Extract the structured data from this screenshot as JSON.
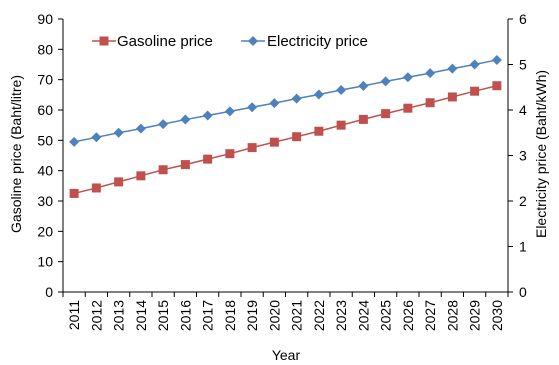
{
  "chart_data": {
    "type": "line",
    "xlabel": "Year",
    "ylabel_left": "Gasoline price (Baht/litre)",
    "ylabel_right": "Electricity price (Baht/kWh)",
    "x": [
      "2011",
      "2012",
      "2013",
      "2014",
      "2015",
      "2016",
      "2017",
      "2018",
      "2019",
      "2020",
      "2021",
      "2022",
      "2023",
      "2024",
      "2025",
      "2026",
      "2027",
      "2028",
      "2029",
      "2030"
    ],
    "ylim_left": [
      0,
      90
    ],
    "yticks_left": [
      0,
      10,
      20,
      30,
      40,
      50,
      60,
      70,
      80,
      90
    ],
    "ylim_right": [
      0,
      6
    ],
    "yticks_right": [
      0,
      1,
      2,
      3,
      4,
      5,
      6
    ],
    "grid": false,
    "legend_position": "top-left",
    "series": [
      {
        "name": "Gasoline price",
        "axis": "left",
        "marker": "square",
        "color": "#c0504d",
        "values": [
          32.5,
          34.3,
          36.3,
          38.3,
          40.3,
          42.0,
          43.8,
          45.6,
          47.6,
          49.4,
          51.2,
          53.0,
          55.0,
          56.9,
          58.8,
          60.6,
          62.4,
          64.3,
          66.2,
          68.0
        ]
      },
      {
        "name": "Electricity price",
        "axis": "right",
        "marker": "diamond",
        "color": "#4f81bd",
        "values": [
          3.3,
          3.4,
          3.5,
          3.59,
          3.69,
          3.79,
          3.88,
          3.97,
          4.06,
          4.15,
          4.25,
          4.34,
          4.44,
          4.53,
          4.63,
          4.72,
          4.81,
          4.91,
          5.0,
          5.1
        ]
      }
    ]
  }
}
